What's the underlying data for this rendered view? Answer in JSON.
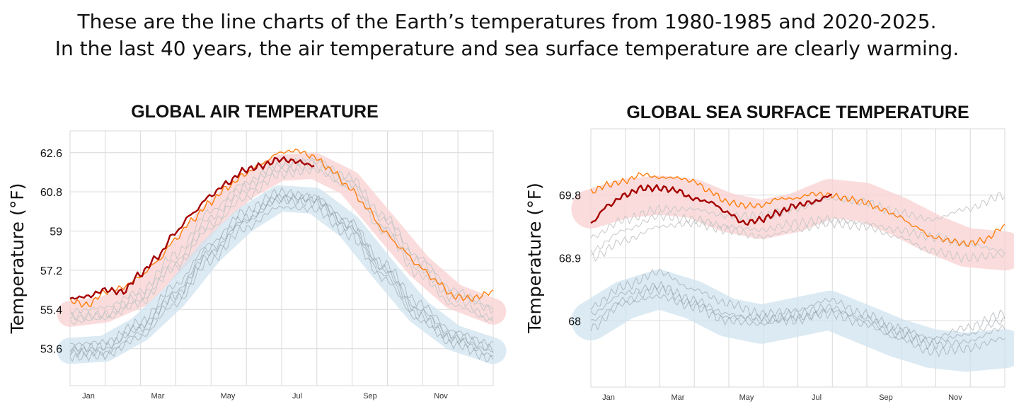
{
  "headline": {
    "line1_before": "These are the line charts of the Earth’s temperatures from ",
    "line1_range1": "1980-1985",
    "line1_and": " and ",
    "line1_range2": "2020-2025",
    "line1_end": ".",
    "line2": "In the last 40 years, the air temperature and sea surface temperature are clearly warming."
  },
  "colors": {
    "current": "#a50000",
    "previous": "#ff7f0e",
    "recent_band": "#f9d0d0",
    "old_band": "#cfe3ef",
    "recent_lines": "#c8c8c8",
    "old_lines": "#8a939a",
    "grid": "#d9d9d9"
  },
  "chart_data": [
    {
      "type": "line",
      "title": "GLOBAL AIR TEMPERATURE",
      "ylabel": "Temperature (°F)",
      "xlabel": "",
      "x_ticks": [
        "Jan",
        "Mar",
        "May",
        "Jul",
        "Sep",
        "Nov"
      ],
      "y_ticks": [
        62.6,
        60.8,
        59,
        57.2,
        55.4,
        53.6
      ],
      "ylim": [
        51.9,
        63.6
      ],
      "grid": true,
      "series": [
        {
          "role": "current",
          "x": [
            0,
            15,
            30,
            45,
            60,
            75,
            90,
            105,
            120,
            135,
            150,
            165,
            180,
            195,
            210
          ],
          "y": [
            55.9,
            56.0,
            56.3,
            56.2,
            57.0,
            57.8,
            58.9,
            59.8,
            60.6,
            61.2,
            61.8,
            62.0,
            62.3,
            62.2,
            62.0
          ]
        },
        {
          "role": "previous",
          "x": [
            0,
            15,
            30,
            45,
            60,
            75,
            90,
            105,
            120,
            135,
            150,
            165,
            180,
            195,
            210,
            225,
            240,
            255,
            270,
            285,
            300,
            315,
            330,
            345,
            364
          ],
          "y": [
            55.8,
            55.6,
            56.2,
            56.4,
            56.9,
            57.6,
            58.6,
            59.5,
            60.3,
            61.0,
            61.6,
            62.1,
            62.6,
            62.7,
            62.4,
            61.8,
            61.0,
            60.1,
            59.0,
            58.2,
            57.4,
            56.7,
            56.0,
            55.9,
            56.2
          ]
        },
        {
          "role": "recent",
          "x": [
            0,
            30,
            60,
            90,
            120,
            150,
            180,
            210,
            240,
            270,
            300,
            330,
            364
          ],
          "y": [
            55.3,
            55.5,
            56.2,
            57.9,
            59.9,
            61.2,
            62.1,
            62.2,
            61.3,
            59.5,
            57.6,
            56.1,
            55.5
          ]
        },
        {
          "role": "recent",
          "x": [
            0,
            30,
            60,
            90,
            120,
            150,
            180,
            210,
            240,
            270,
            300,
            330,
            364
          ],
          "y": [
            55.0,
            55.2,
            56.0,
            57.6,
            59.6,
            61.0,
            62.0,
            62.3,
            61.5,
            59.7,
            57.8,
            56.3,
            55.4
          ]
        },
        {
          "role": "recent",
          "x": [
            0,
            30,
            60,
            90,
            120,
            150,
            180,
            210,
            240,
            270,
            300,
            330,
            364
          ],
          "y": [
            55.1,
            55.1,
            55.8,
            57.4,
            59.3,
            60.8,
            61.8,
            62.0,
            61.2,
            59.2,
            57.3,
            55.9,
            55.0
          ]
        },
        {
          "role": "recent",
          "x": [
            0,
            30,
            60,
            90,
            120,
            150,
            180,
            210,
            240,
            270,
            300,
            330,
            364
          ],
          "y": [
            54.8,
            55.0,
            55.7,
            57.3,
            59.1,
            60.5,
            61.6,
            61.8,
            61.0,
            59.0,
            57.0,
            55.6,
            54.9
          ]
        },
        {
          "role": "old",
          "x": [
            0,
            30,
            60,
            90,
            120,
            150,
            180,
            210,
            240,
            270,
            300,
            330,
            364
          ],
          "y": [
            53.6,
            53.7,
            54.6,
            56.2,
            58.2,
            59.6,
            60.6,
            60.4,
            59.3,
            57.3,
            55.4,
            54.2,
            53.6
          ]
        },
        {
          "role": "old",
          "x": [
            0,
            30,
            60,
            90,
            120,
            150,
            180,
            210,
            240,
            270,
            300,
            330,
            364
          ],
          "y": [
            53.4,
            53.4,
            54.3,
            55.9,
            57.9,
            59.4,
            60.4,
            60.3,
            59.1,
            57.0,
            55.1,
            54.0,
            53.3
          ]
        },
        {
          "role": "old",
          "x": [
            0,
            30,
            60,
            90,
            120,
            150,
            180,
            210,
            240,
            270,
            300,
            330,
            364
          ],
          "y": [
            53.8,
            53.9,
            54.8,
            56.5,
            58.4,
            59.9,
            60.8,
            60.6,
            59.5,
            57.5,
            55.7,
            54.4,
            53.8
          ]
        },
        {
          "role": "old",
          "x": [
            0,
            30,
            60,
            90,
            120,
            150,
            180,
            210,
            240,
            270,
            300,
            330,
            364
          ],
          "y": [
            53.2,
            53.3,
            54.1,
            55.6,
            57.6,
            59.1,
            60.1,
            60.0,
            58.8,
            56.8,
            54.9,
            53.8,
            53.1
          ]
        },
        {
          "role": "old",
          "x": [
            0,
            30,
            60,
            90,
            120,
            150,
            180,
            210,
            240,
            270,
            300,
            330,
            364
          ],
          "y": [
            53.5,
            53.6,
            54.5,
            56.0,
            58.0,
            59.5,
            60.5,
            60.5,
            59.2,
            57.2,
            55.3,
            54.1,
            53.5
          ]
        }
      ],
      "bands": [
        {
          "role": "recent_band",
          "x": [
            0,
            30,
            60,
            90,
            120,
            150,
            180,
            210,
            240,
            270,
            300,
            330,
            364
          ],
          "y": [
            55.2,
            55.4,
            56.1,
            57.7,
            59.6,
            61.0,
            61.9,
            62.0,
            61.2,
            59.3,
            57.4,
            56.0,
            55.3
          ],
          "spread": 0.6
        },
        {
          "role": "old_band",
          "x": [
            0,
            30,
            60,
            90,
            120,
            150,
            180,
            210,
            240,
            270,
            300,
            330,
            364
          ],
          "y": [
            53.5,
            53.6,
            54.5,
            56.0,
            58.0,
            59.5,
            60.5,
            60.4,
            59.2,
            57.2,
            55.3,
            54.1,
            53.5
          ],
          "spread": 0.6
        }
      ]
    },
    {
      "type": "line",
      "title": "GLOBAL SEA SURFACE TEMPERATURE",
      "ylabel": "Temperature (°F)",
      "xlabel": "",
      "x_ticks": [
        "Jan",
        "Mar",
        "May",
        "Jul",
        "Sep",
        "Nov"
      ],
      "y_ticks": [
        69.8,
        68.9,
        68
      ],
      "ylim": [
        67.05,
        70.75
      ],
      "grid": true,
      "series": [
        {
          "role": "current",
          "x": [
            0,
            15,
            30,
            45,
            60,
            75,
            90,
            105,
            120,
            135,
            150,
            165,
            180,
            195,
            212
          ],
          "y": [
            69.4,
            69.65,
            69.8,
            69.9,
            69.9,
            69.87,
            69.75,
            69.7,
            69.55,
            69.4,
            69.45,
            69.55,
            69.65,
            69.7,
            69.8
          ]
        },
        {
          "role": "previous",
          "x": [
            0,
            15,
            30,
            45,
            60,
            75,
            90,
            105,
            120,
            135,
            150,
            165,
            180,
            195,
            210,
            225,
            240,
            255,
            270,
            285,
            300,
            315,
            330,
            345,
            364
          ],
          "y": [
            69.85,
            69.95,
            70.0,
            70.1,
            70.05,
            70.05,
            70.0,
            69.85,
            69.7,
            69.65,
            69.65,
            69.75,
            69.75,
            69.82,
            69.8,
            69.75,
            69.7,
            69.6,
            69.5,
            69.35,
            69.2,
            69.15,
            69.1,
            69.15,
            69.35
          ]
        },
        {
          "role": "recent",
          "x": [
            0,
            30,
            60,
            90,
            120,
            150,
            180,
            210,
            240,
            270,
            300,
            330,
            364
          ],
          "y": [
            69.0,
            69.3,
            69.5,
            69.45,
            69.35,
            69.3,
            69.4,
            69.45,
            69.4,
            69.3,
            69.2,
            69.1,
            69.0
          ]
        },
        {
          "role": "recent",
          "x": [
            0,
            30,
            60,
            90,
            120,
            150,
            180,
            210,
            240,
            270,
            300,
            330,
            364
          ],
          "y": [
            69.2,
            69.45,
            69.6,
            69.6,
            69.5,
            69.5,
            69.6,
            69.75,
            69.7,
            69.55,
            69.45,
            69.6,
            69.8
          ]
        },
        {
          "role": "recent",
          "x": [
            0,
            30,
            60,
            90,
            120,
            150,
            180,
            210,
            240,
            270,
            300,
            330,
            364
          ],
          "y": [
            68.9,
            69.15,
            69.35,
            69.4,
            69.3,
            69.2,
            69.3,
            69.4,
            69.35,
            69.2,
            69.0,
            68.9,
            68.95
          ]
        },
        {
          "role": "old",
          "x": [
            0,
            30,
            60,
            90,
            120,
            150,
            180,
            210,
            240,
            270,
            300,
            330,
            364
          ],
          "y": [
            68.1,
            68.4,
            68.5,
            68.3,
            68.1,
            68.0,
            68.1,
            68.2,
            68.0,
            67.8,
            67.65,
            67.7,
            67.9
          ]
        },
        {
          "role": "old",
          "x": [
            0,
            30,
            60,
            90,
            120,
            150,
            180,
            210,
            240,
            270,
            300,
            330,
            364
          ],
          "y": [
            68.2,
            68.5,
            68.7,
            68.45,
            68.25,
            68.1,
            68.15,
            68.3,
            68.1,
            67.9,
            67.75,
            67.9,
            68.1
          ]
        },
        {
          "role": "old",
          "x": [
            0,
            30,
            60,
            90,
            120,
            150,
            180,
            210,
            240,
            270,
            300,
            330,
            364
          ],
          "y": [
            67.9,
            68.25,
            68.35,
            68.2,
            68.0,
            67.95,
            68.05,
            68.1,
            67.95,
            67.75,
            67.55,
            67.6,
            67.75
          ]
        },
        {
          "role": "old",
          "x": [
            0,
            30,
            60,
            90,
            120,
            150,
            180,
            210,
            240,
            270,
            300,
            330,
            364
          ],
          "y": [
            68.0,
            68.3,
            68.45,
            68.25,
            68.05,
            68.05,
            68.0,
            68.15,
            68.05,
            67.85,
            67.7,
            67.8,
            68.0
          ]
        }
      ],
      "bands": [
        {
          "role": "recent_band",
          "x": [
            0,
            30,
            60,
            90,
            120,
            150,
            180,
            210,
            240,
            270,
            300,
            330,
            364
          ],
          "y": [
            69.6,
            69.75,
            69.8,
            69.75,
            69.55,
            69.45,
            69.55,
            69.75,
            69.7,
            69.5,
            69.25,
            69.05,
            69.0
          ],
          "spread": 0.28
        },
        {
          "role": "old_band",
          "x": [
            0,
            30,
            60,
            90,
            120,
            150,
            180,
            210,
            240,
            270,
            300,
            330,
            364
          ],
          "y": [
            68.0,
            68.3,
            68.45,
            68.3,
            68.05,
            67.95,
            68.05,
            68.15,
            67.95,
            67.75,
            67.6,
            67.55,
            67.6
          ],
          "spread": 0.28
        }
      ]
    }
  ]
}
